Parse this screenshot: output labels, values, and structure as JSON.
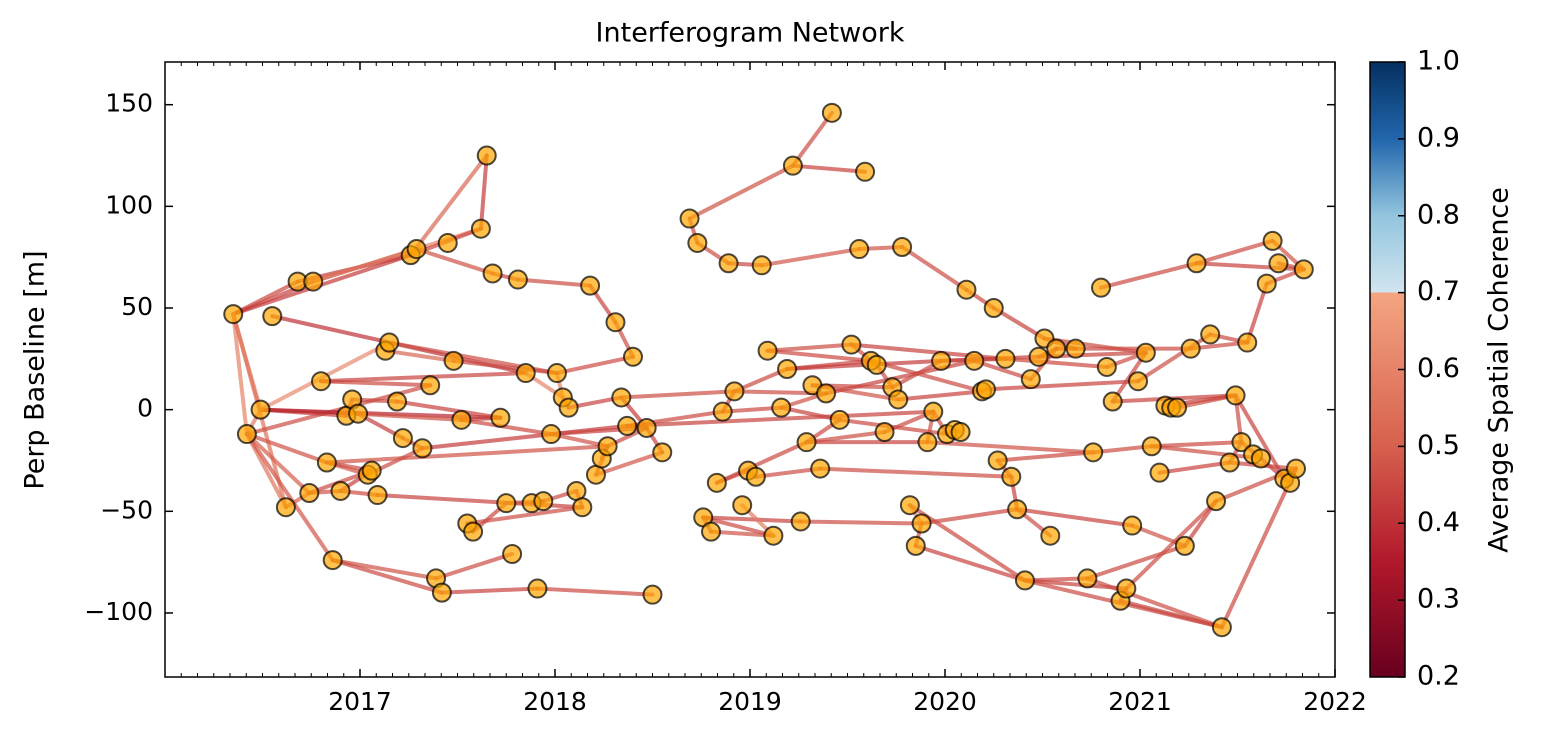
{
  "chart_data": {
    "type": "network",
    "title": "Interferogram Network",
    "ylabel": "Perp Baseline [m]",
    "colorbar_label": "Average Spatial Coherence",
    "xlim": [
      2016.0,
      2022.0
    ],
    "xticks": [
      2017,
      2018,
      2019,
      2020,
      2021,
      2022
    ],
    "ylim": [
      -131.5,
      171
    ],
    "yticks": [
      {
        "value": -100,
        "label": "−100"
      },
      {
        "value": -50,
        "label": "−50"
      },
      0,
      50,
      100,
      150
    ],
    "clim": [
      0.2,
      1.0
    ],
    "cticks": [
      0.2,
      0.3,
      0.4,
      0.5,
      0.6,
      0.7,
      0.8,
      0.9,
      {
        "value": 1.0,
        "label": "1.0"
      }
    ],
    "colormap": [
      [
        0.2,
        "#67001f"
      ],
      [
        0.35,
        "#b2182b"
      ],
      [
        0.5,
        "#d6604d"
      ],
      [
        0.7,
        "#f4a582"
      ],
      [
        0.7,
        "#d1e5f0"
      ],
      [
        0.8,
        "#92c5de"
      ],
      [
        0.9,
        "#2166ac"
      ],
      [
        1.0,
        "#053061"
      ]
    ],
    "node_color": "#ffa500",
    "x": [
      2016.35,
      2016.42,
      2016.49,
      2016.55,
      2016.62,
      2016.68,
      2016.76,
      2016.74,
      2016.8,
      2016.83,
      2016.86,
      2016.9,
      2016.93,
      2016.96,
      2016.99,
      2017.04,
      2017.06,
      2017.09,
      2017.13,
      2017.15,
      2017.19,
      2017.22,
      2017.26,
      2017.29,
      2017.32,
      2017.36,
      2017.39,
      2017.42,
      2017.45,
      2017.48,
      2017.52,
      2017.55,
      2017.58,
      2017.62,
      2017.65,
      2017.68,
      2017.72,
      2017.75,
      2017.78,
      2017.81,
      2017.85,
      2017.88,
      2017.91,
      2017.94,
      2017.98,
      2018.01,
      2018.04,
      2018.07,
      2018.11,
      2018.14,
      2018.18,
      2018.21,
      2018.24,
      2018.27,
      2018.31,
      2018.34,
      2018.37,
      2018.4,
      2018.47,
      2018.5,
      2018.55,
      2018.69,
      2018.73,
      2018.76,
      2018.8,
      2018.83,
      2018.86,
      2018.89,
      2018.92,
      2018.96,
      2018.99,
      2019.03,
      2019.06,
      2019.09,
      2019.12,
      2019.16,
      2019.19,
      2019.22,
      2019.26,
      2019.29,
      2019.32,
      2019.36,
      2019.39,
      2019.42,
      2019.46,
      2019.52,
      2019.56,
      2019.59,
      2019.62,
      2019.65,
      2019.69,
      2019.73,
      2019.76,
      2019.78,
      2019.82,
      2019.85,
      2019.88,
      2019.91,
      2019.94,
      2019.98,
      2020.01,
      2020.05,
      2020.08,
      2020.11,
      2020.15,
      2020.19,
      2020.21,
      2020.25,
      2020.27,
      2020.31,
      2020.34,
      2020.37,
      2020.41,
      2020.44,
      2020.48,
      2020.51,
      2020.54,
      2020.57,
      2020.67,
      2020.73,
      2020.76,
      2020.8,
      2020.83,
      2020.86,
      2020.9,
      2020.93,
      2020.96,
      2020.99,
      2021.03,
      2021.06,
      2021.1,
      2021.13,
      2021.16,
      2021.19,
      2021.23,
      2021.26,
      2021.29,
      2021.36,
      2021.39,
      2021.42,
      2021.46,
      2021.49,
      2021.52,
      2021.55,
      2021.58,
      2021.62,
      2021.65,
      2021.68,
      2021.71,
      2021.74,
      2021.77,
      2021.8,
      2021.84
    ],
    "y": [
      47,
      -12,
      0,
      46,
      -48,
      63,
      63,
      -41,
      14,
      -26,
      -74,
      -40,
      -3,
      5,
      -2,
      -32,
      -30,
      -42,
      29,
      33,
      4,
      -14,
      76,
      79,
      -19,
      12,
      -83,
      -90,
      82,
      24,
      -5,
      -56,
      -60,
      89,
      125,
      67,
      -4,
      -46,
      -71,
      64,
      18,
      -46,
      -88,
      -45,
      -12,
      18,
      6,
      1,
      -40,
      -48,
      61,
      -32,
      -24,
      -18,
      43,
      6,
      -8,
      26,
      -9,
      -91,
      -21,
      94,
      82,
      -53,
      -60,
      -36,
      -1,
      72,
      9,
      -47,
      -30,
      -33,
      71,
      29,
      -62,
      1,
      20,
      120,
      -55,
      -16,
      12,
      -29,
      8,
      146,
      -5,
      32,
      79,
      117,
      24,
      22,
      -11,
      11,
      5,
      80,
      -47,
      -67,
      -56,
      -16,
      -1,
      24,
      -12,
      -10,
      -11,
      59,
      24,
      9,
      10,
      50,
      -25,
      25,
      -33,
      -49,
      -84,
      15,
      26,
      35,
      -62,
      30,
      30,
      -83,
      -21,
      60,
      21,
      4,
      -94,
      -88,
      -57,
      14,
      28,
      -18,
      -31,
      2,
      1,
      1,
      -67,
      30,
      72,
      37,
      -45,
      -107,
      -26,
      7,
      -16,
      33,
      -22,
      -24,
      62,
      83,
      72,
      -34,
      -36,
      -29,
      69
    ],
    "edges": [
      [
        0,
        5
      ],
      [
        0,
        6
      ],
      [
        0,
        22
      ],
      [
        0,
        2
      ],
      [
        0,
        1
      ],
      [
        0,
        4
      ],
      [
        3,
        40
      ],
      [
        5,
        22
      ],
      [
        6,
        23
      ],
      [
        6,
        33
      ],
      [
        22,
        34
      ],
      [
        33,
        34
      ],
      [
        22,
        33
      ],
      [
        23,
        35
      ],
      [
        35,
        39
      ],
      [
        39,
        50
      ],
      [
        50,
        54
      ],
      [
        54,
        57
      ],
      [
        1,
        2
      ],
      [
        1,
        9
      ],
      [
        1,
        4
      ],
      [
        1,
        7
      ],
      [
        1,
        10
      ],
      [
        1,
        25
      ],
      [
        2,
        14
      ],
      [
        2,
        12
      ],
      [
        2,
        36
      ],
      [
        2,
        19
      ],
      [
        8,
        25
      ],
      [
        8,
        40
      ],
      [
        12,
        13
      ],
      [
        13,
        20
      ],
      [
        14,
        21
      ],
      [
        14,
        30
      ],
      [
        20,
        36
      ],
      [
        21,
        24
      ],
      [
        24,
        56
      ],
      [
        9,
        15
      ],
      [
        9,
        16
      ],
      [
        9,
        53
      ],
      [
        11,
        16
      ],
      [
        11,
        17
      ],
      [
        7,
        11
      ],
      [
        4,
        7
      ],
      [
        7,
        16
      ],
      [
        17,
        49
      ],
      [
        15,
        24
      ],
      [
        10,
        26
      ],
      [
        10,
        27
      ],
      [
        26,
        38
      ],
      [
        27,
        42
      ],
      [
        42,
        59
      ],
      [
        18,
        29
      ],
      [
        19,
        45
      ],
      [
        29,
        45
      ],
      [
        45,
        46
      ],
      [
        46,
        47
      ],
      [
        40,
        46
      ],
      [
        45,
        57
      ],
      [
        30,
        36
      ],
      [
        30,
        44
      ],
      [
        44,
        53
      ],
      [
        44,
        58
      ],
      [
        31,
        32
      ],
      [
        31,
        49
      ],
      [
        32,
        37
      ],
      [
        37,
        43
      ],
      [
        41,
        43
      ],
      [
        43,
        48
      ],
      [
        51,
        53
      ],
      [
        52,
        53
      ],
      [
        51,
        60
      ],
      [
        53,
        58
      ],
      [
        55,
        58
      ],
      [
        56,
        58
      ],
      [
        58,
        60
      ],
      [
        56,
        66
      ],
      [
        47,
        55
      ],
      [
        55,
        68
      ],
      [
        48,
        49
      ],
      [
        61,
        62
      ],
      [
        61,
        77
      ],
      [
        62,
        67
      ],
      [
        67,
        72
      ],
      [
        72,
        86
      ],
      [
        77,
        87
      ],
      [
        77,
        83
      ],
      [
        86,
        93
      ],
      [
        93,
        103
      ],
      [
        103,
        107
      ],
      [
        107,
        115
      ],
      [
        115,
        118
      ],
      [
        63,
        64
      ],
      [
        63,
        74
      ],
      [
        64,
        74
      ],
      [
        63,
        78
      ],
      [
        65,
        70
      ],
      [
        65,
        79
      ],
      [
        70,
        71
      ],
      [
        71,
        81
      ],
      [
        69,
        74
      ],
      [
        66,
        75
      ],
      [
        66,
        68
      ],
      [
        68,
        82
      ],
      [
        68,
        76
      ],
      [
        75,
        82
      ],
      [
        75,
        84
      ],
      [
        73,
        85
      ],
      [
        73,
        88
      ],
      [
        76,
        88
      ],
      [
        76,
        99
      ],
      [
        78,
        96
      ],
      [
        79,
        84
      ],
      [
        79,
        97
      ],
      [
        79,
        90
      ],
      [
        80,
        91
      ],
      [
        80,
        92
      ],
      [
        82,
        104
      ],
      [
        84,
        100
      ],
      [
        85,
        89
      ],
      [
        85,
        109
      ],
      [
        88,
        105
      ],
      [
        89,
        91
      ],
      [
        90,
        98
      ],
      [
        92,
        105
      ],
      [
        94,
        96
      ],
      [
        94,
        112
      ],
      [
        95,
        96
      ],
      [
        95,
        112
      ],
      [
        96,
        111
      ],
      [
        97,
        98
      ],
      [
        98,
        100
      ],
      [
        100,
        101
      ],
      [
        101,
        102
      ],
      [
        99,
        109
      ],
      [
        99,
        114
      ],
      [
        104,
        113
      ],
      [
        105,
        106
      ],
      [
        106,
        127
      ],
      [
        108,
        110
      ],
      [
        108,
        120
      ],
      [
        110,
        111
      ],
      [
        111,
        116
      ],
      [
        112,
        119
      ],
      [
        112,
        125
      ],
      [
        113,
        117
      ],
      [
        114,
        117
      ],
      [
        114,
        128
      ],
      [
        115,
        128
      ],
      [
        117,
        118
      ],
      [
        118,
        135
      ],
      [
        120,
        129
      ],
      [
        121,
        136
      ],
      [
        136,
        147
      ],
      [
        136,
        152
      ],
      [
        147,
        152
      ],
      [
        148,
        152
      ],
      [
        146,
        152
      ],
      [
        146,
        143
      ],
      [
        122,
        109
      ],
      [
        122,
        128
      ],
      [
        123,
        128
      ],
      [
        123,
        141
      ],
      [
        127,
        137
      ],
      [
        125,
        124
      ],
      [
        124,
        139
      ],
      [
        119,
        139
      ],
      [
        119,
        134
      ],
      [
        126,
        134
      ],
      [
        126,
        111
      ],
      [
        129,
        145
      ],
      [
        129,
        142
      ],
      [
        130,
        140
      ],
      [
        131,
        132
      ],
      [
        132,
        133
      ],
      [
        133,
        141
      ],
      [
        131,
        141
      ],
      [
        135,
        143
      ],
      [
        137,
        143
      ],
      [
        138,
        134
      ],
      [
        138,
        151
      ],
      [
        139,
        151
      ],
      [
        140,
        142
      ],
      [
        140,
        151
      ],
      [
        141,
        149
      ],
      [
        141,
        142
      ],
      [
        142,
        145
      ],
      [
        144,
        145
      ],
      [
        145,
        149
      ],
      [
        149,
        150
      ],
      [
        150,
        151
      ],
      [
        138,
        125
      ],
      [
        112,
        139
      ],
      [
        56,
        98
      ],
      [
        81,
        110
      ],
      [
        97,
        120
      ],
      [
        91,
        99
      ]
    ],
    "coherence": [
      0.45,
      0.44,
      0.42,
      0.58,
      0.6,
      0.55,
      0.4,
      0.42,
      0.4,
      0.6,
      0.52,
      0.42,
      0.45,
      0.47,
      0.45,
      0.46,
      0.44,
      0.46,
      0.58,
      0.47,
      0.56,
      0.5,
      0.48,
      0.46,
      0.44,
      0.43,
      0.38,
      0.62,
      0.45,
      0.44,
      0.46,
      0.45,
      0.43,
      0.47,
      0.44,
      0.46,
      0.42,
      0.48,
      0.45,
      0.47,
      0.44,
      0.46,
      0.47,
      0.5,
      0.45,
      0.44,
      0.46,
      0.47,
      0.45,
      0.46,
      0.44,
      0.45,
      0.52,
      0.46,
      0.45,
      0.6,
      0.48,
      0.6,
      0.46,
      0.43,
      0.45,
      0.47,
      0.44,
      0.6,
      0.46,
      0.45,
      0.47,
      0.45,
      0.46,
      0.44,
      0.46,
      0.48,
      0.45,
      0.42,
      0.46,
      0.44,
      0.45,
      0.44,
      0.46,
      0.45,
      0.45,
      0.47,
      0.46,
      0.45,
      0.48,
      0.44,
      0.46,
      0.47,
      0.46,
      0.45,
      0.44,
      0.47,
      0.46,
      0.45,
      0.47,
      0.44,
      0.46,
      0.45,
      0.43,
      0.46,
      0.58,
      0.45,
      0.44,
      0.46,
      0.45,
      0.47,
      0.44,
      0.46,
      0.45,
      0.44,
      0.42,
      0.46,
      0.45,
      0.44,
      0.46,
      0.45,
      0.47,
      0.44,
      0.45,
      0.46,
      0.44,
      0.45,
      0.46,
      0.45,
      0.44,
      0.6,
      0.45,
      0.46,
      0.44,
      0.45,
      0.47,
      0.46,
      0.45,
      0.44,
      0.46,
      0.43,
      0.45,
      0.47,
      0.44,
      0.46,
      0.45,
      0.44,
      0.46,
      0.45,
      0.44,
      0.46,
      0.45,
      0.44,
      0.46,
      0.4,
      0.45,
      0.46,
      0.45,
      0.46,
      0.44,
      0.47,
      0.45,
      0.46,
      0.44,
      0.45,
      0.46,
      0.45,
      0.44,
      0.46,
      0.45,
      0.44,
      0.46,
      0.45,
      0.47,
      0.44,
      0.46,
      0.45,
      0.44,
      0.46,
      0.45,
      0.47,
      0.44,
      0.46,
      0.45,
      0.44,
      0.46,
      0.45,
      0.46,
      0.45,
      0.44,
      0.46,
      0.45,
      0.47,
      0.44,
      0.46,
      0.45,
      0.46,
      0.45,
      0.44,
      0.46,
      0.47,
      0.45
    ]
  }
}
